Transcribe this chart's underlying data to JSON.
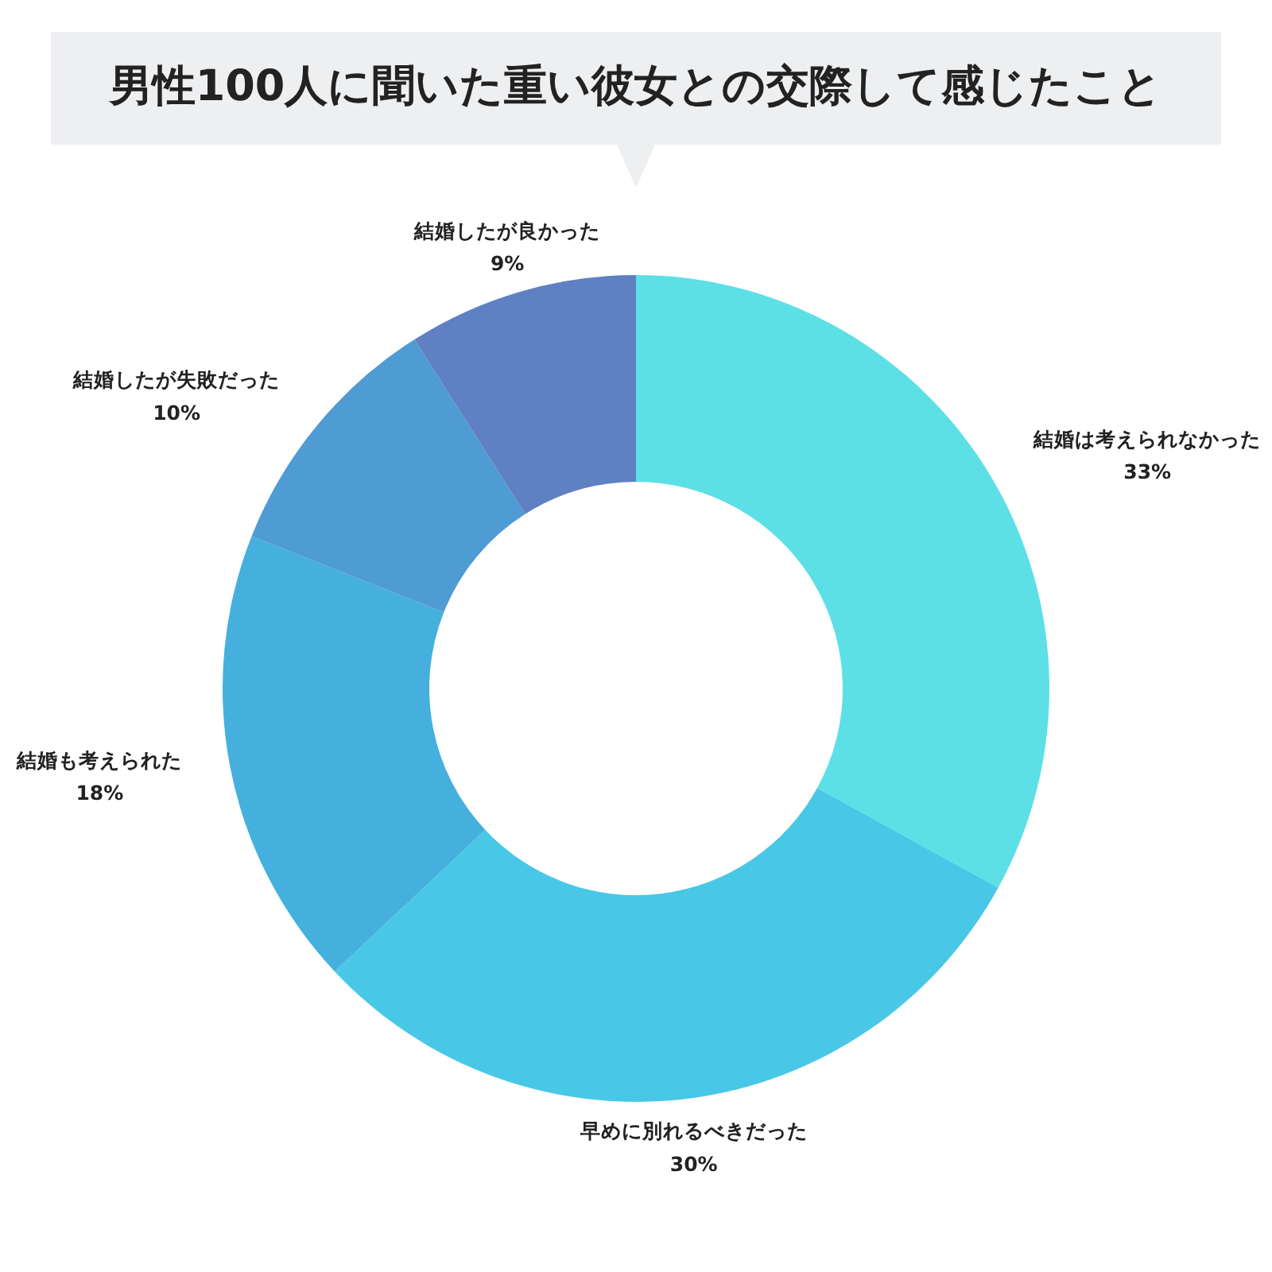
{
  "chart_data": {
    "type": "donut",
    "title": "男性100人に聞いた重い彼女との交際して感じたこと",
    "categories": [
      "結婚は考えられなかった",
      "早めに別れるべきだった",
      "結婚も考えられた",
      "結婚したが失敗だった",
      "結婚したが良かった"
    ],
    "values": [
      33,
      30,
      18,
      10,
      9
    ],
    "colors": [
      "#5ce0e6",
      "#48c8e6",
      "#45b0de",
      "#4f9bd4",
      "#5f80c2"
    ],
    "value_labels": [
      "33%",
      "30%",
      "18%",
      "10%",
      "9%"
    ]
  }
}
